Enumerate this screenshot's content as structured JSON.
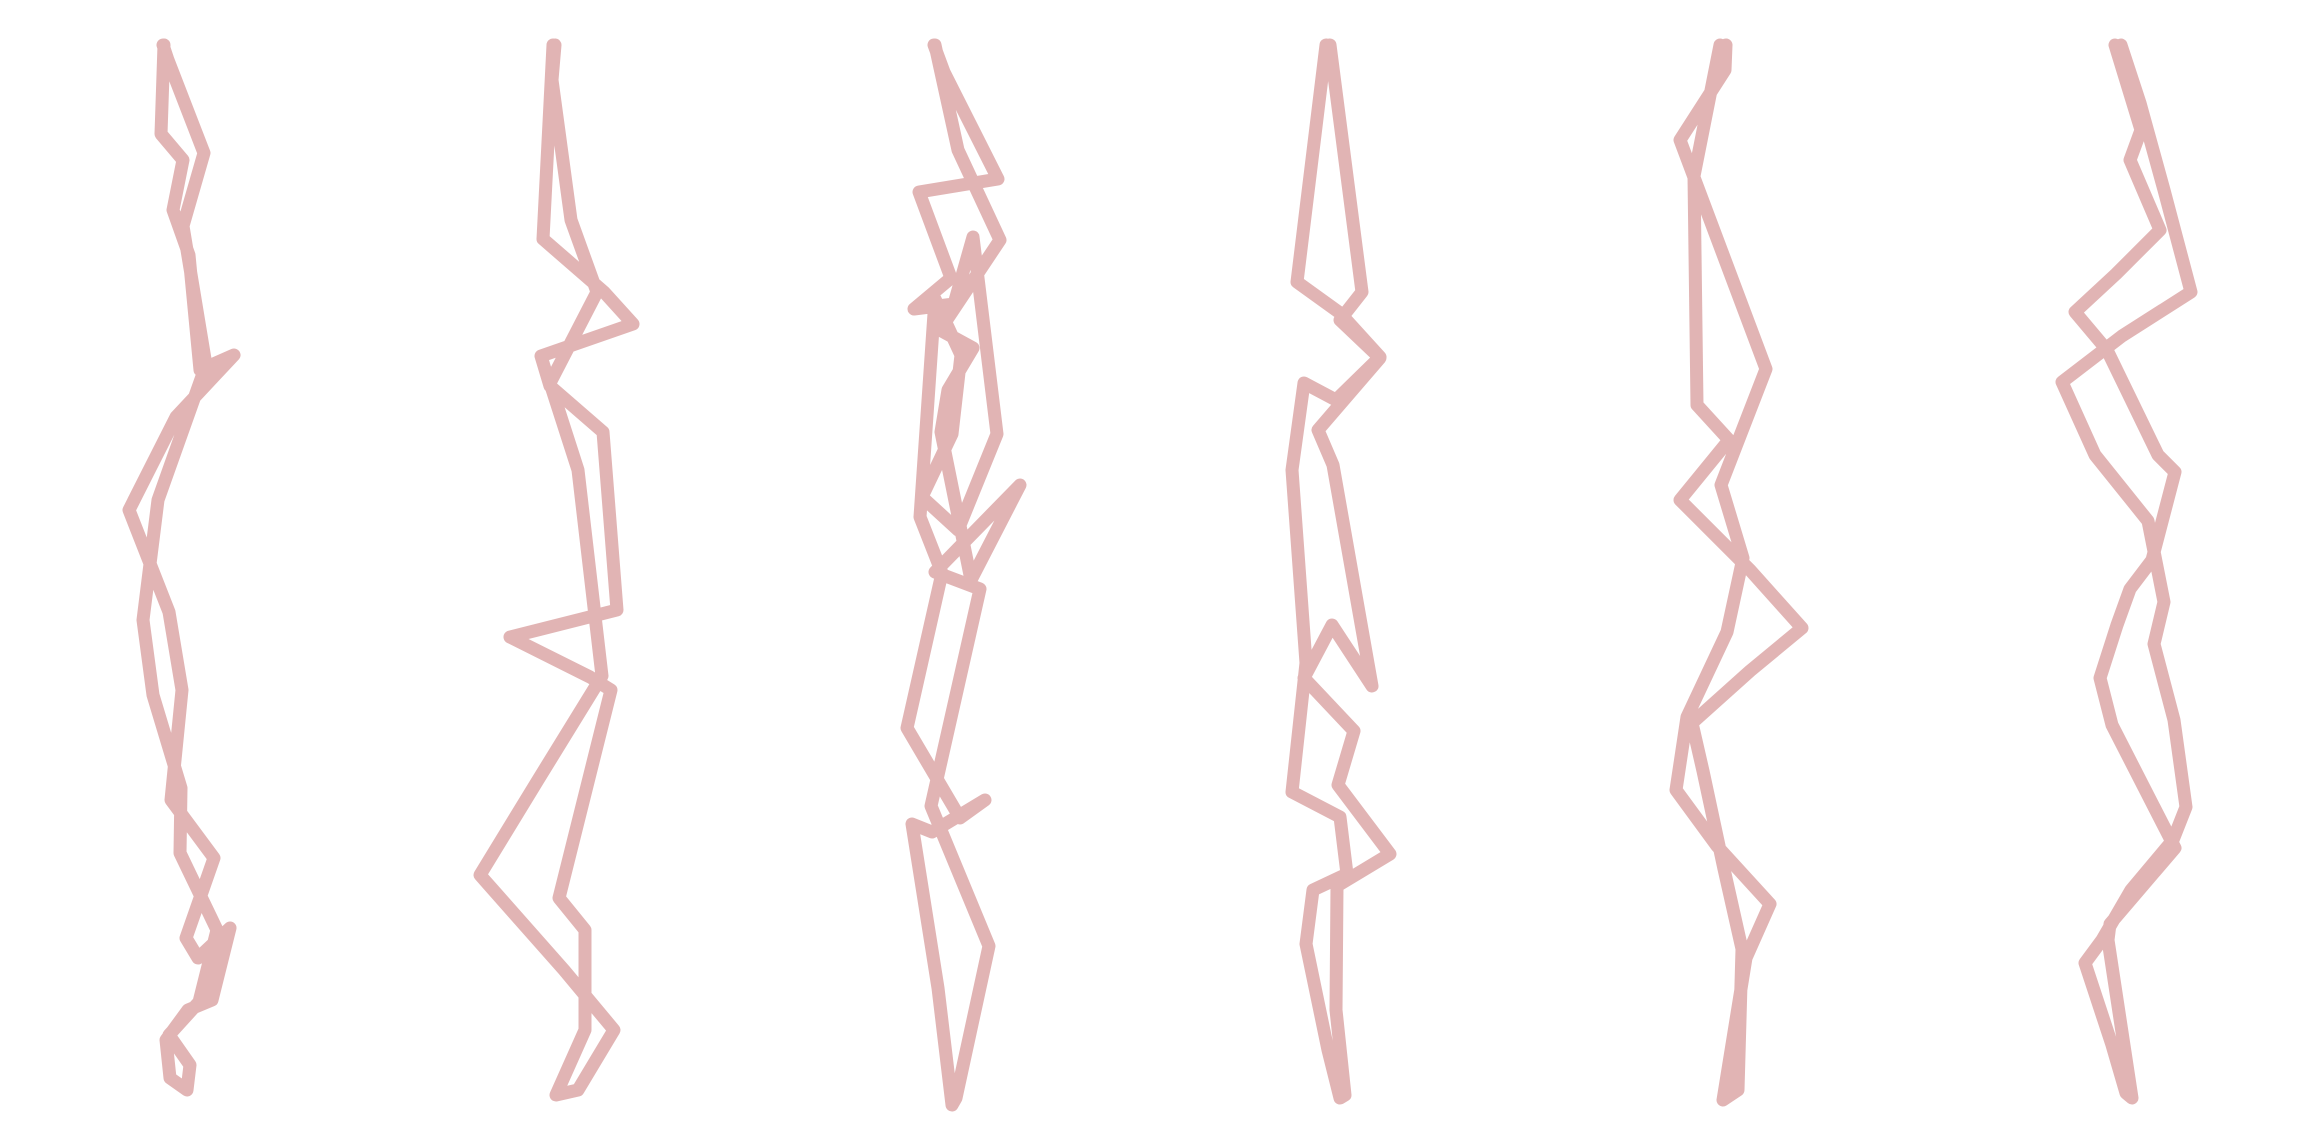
{
  "figure": {
    "panel_count": 6,
    "colors": {
      "background": "#ffffff",
      "stroke": "#b03a3a"
    },
    "panels": [
      {
        "id": "panel-1"
      },
      {
        "id": "panel-2"
      },
      {
        "id": "panel-3"
      },
      {
        "id": "panel-4"
      },
      {
        "id": "panel-5"
      },
      {
        "id": "panel-6"
      }
    ]
  }
}
